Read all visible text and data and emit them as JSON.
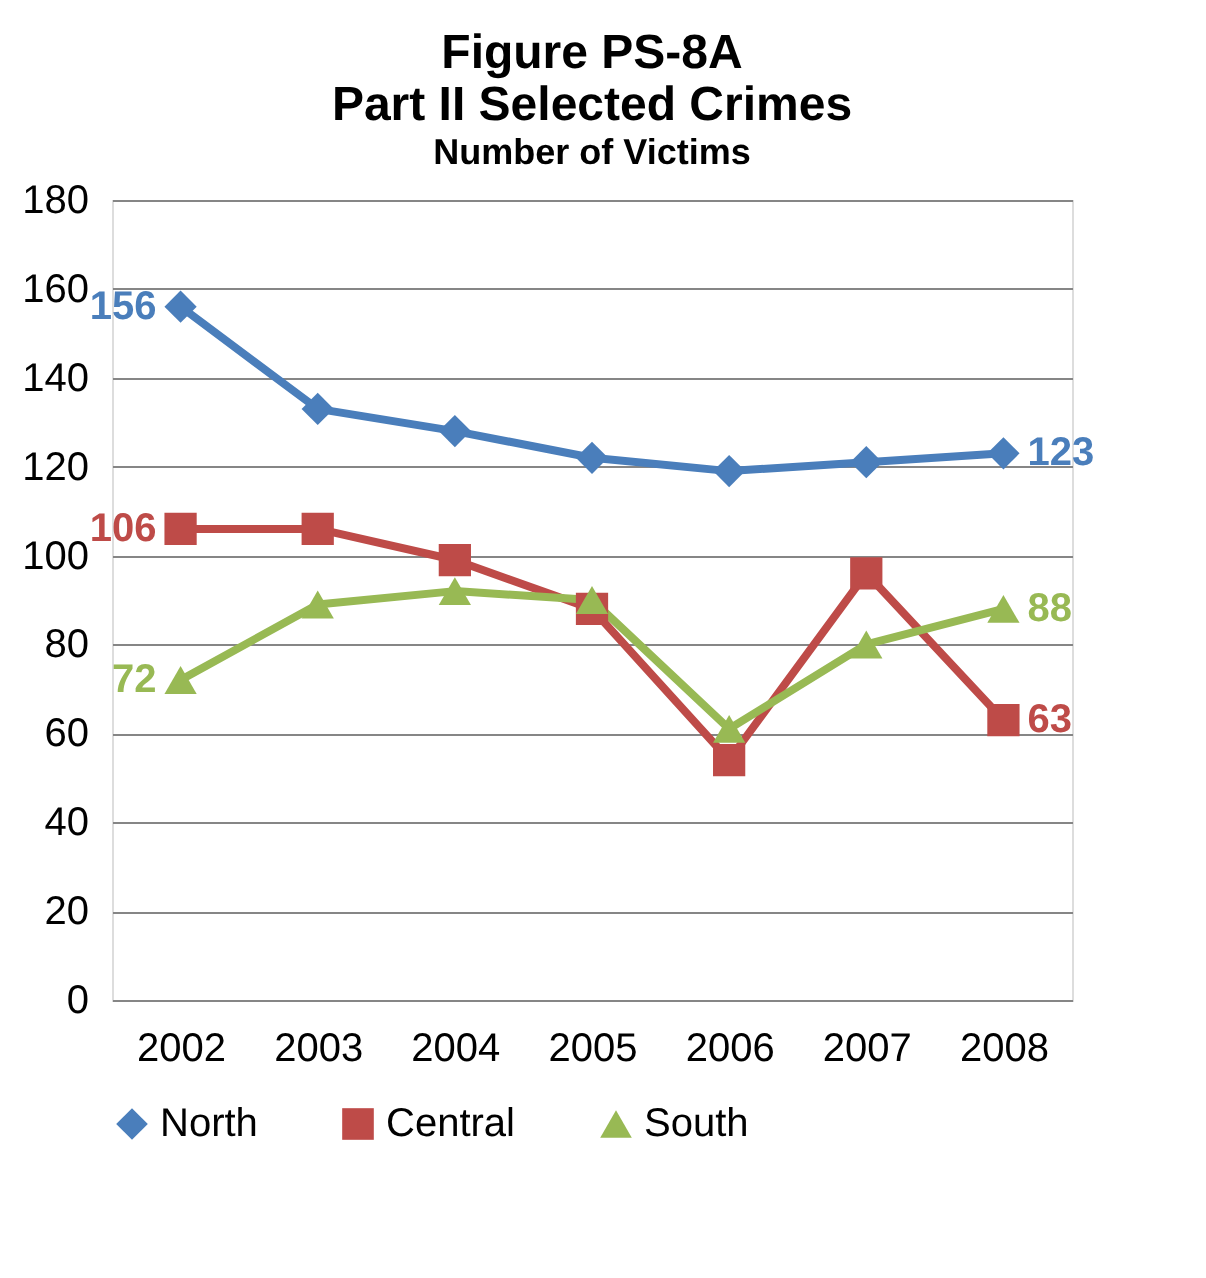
{
  "chart_data": {
    "type": "line",
    "title": [
      "Figure PS-8A",
      "Part II Selected Crimes"
    ],
    "subtitle": "Number of Victims",
    "categories": [
      "2002",
      "2003",
      "2004",
      "2005",
      "2006",
      "2007",
      "2008"
    ],
    "series": [
      {
        "name": "North",
        "color": "#4a7ebb",
        "marker": "diamond",
        "values": [
          156,
          133,
          128,
          122,
          119,
          121,
          123
        ],
        "value_labels": [
          "156",
          null,
          null,
          null,
          null,
          null,
          "123"
        ]
      },
      {
        "name": "Central",
        "color": "#be4b48",
        "marker": "square",
        "values": [
          106,
          106,
          99,
          88,
          54,
          96,
          63
        ],
        "value_labels": [
          "106",
          null,
          null,
          null,
          null,
          null,
          "63"
        ]
      },
      {
        "name": "South",
        "color": "#98b954",
        "marker": "triangle",
        "values": [
          72,
          89,
          92,
          90,
          61,
          80,
          88
        ],
        "value_labels": [
          "72",
          null,
          null,
          null,
          null,
          null,
          "88"
        ]
      }
    ],
    "ylim": [
      0,
      180
    ],
    "yticks": [
      0,
      20,
      40,
      60,
      80,
      100,
      120,
      140,
      160,
      180
    ],
    "grid": "y",
    "legend": "bottom",
    "line_style": "solid"
  }
}
